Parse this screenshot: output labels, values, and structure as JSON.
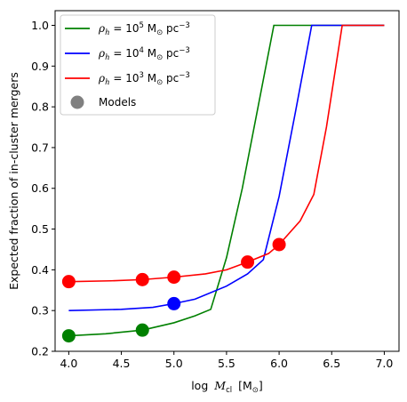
{
  "chart_data": {
    "type": "line",
    "title": "",
    "xlabel_parts": {
      "prefix": "log",
      "var": "M",
      "sub": "cl",
      "unit": "[M",
      "unit_sub": "⊙",
      "unit_end": "]"
    },
    "ylabel": "Expected fraction of in-cluster mergers",
    "xlim": [
      3.87,
      7.14
    ],
    "ylim": [
      0.2,
      1.036
    ],
    "xticks": [
      "4.0",
      "4.5",
      "5.0",
      "5.5",
      "6.0",
      "6.5",
      "7.0"
    ],
    "xtick_values": [
      4.0,
      4.5,
      5.0,
      5.5,
      6.0,
      6.5,
      7.0
    ],
    "yticks": [
      "0.2",
      "0.3",
      "0.4",
      "0.5",
      "0.6",
      "0.7",
      "0.8",
      "0.9",
      "1.0"
    ],
    "ytick_values": [
      0.2,
      0.3,
      0.4,
      0.5,
      0.6,
      0.7,
      0.8,
      0.9,
      1.0
    ],
    "grid": false,
    "legend_position": "top-left",
    "series": [
      {
        "name_parts": {
          "rho": "ρ",
          "rho_sub": "h",
          "eq": " = 10",
          "exp": "5",
          "unit": " M",
          "unit_sub": "⊙",
          "pc": " pc",
          "pc_exp": "−3"
        },
        "color": "#008000",
        "x": [
          4.0,
          4.35,
          4.7,
          5.0,
          5.2,
          5.35,
          5.5,
          5.65,
          5.8,
          5.95,
          6.0,
          7.0
        ],
        "y": [
          0.238,
          0.243,
          0.252,
          0.27,
          0.287,
          0.303,
          0.43,
          0.6,
          0.8,
          1.0,
          1.0,
          1.0
        ],
        "models_x": [
          4.0,
          4.7
        ],
        "models_y": [
          0.238,
          0.252
        ]
      },
      {
        "name_parts": {
          "rho": "ρ",
          "rho_sub": "h",
          "eq": " = 10",
          "exp": "4",
          "unit": " M",
          "unit_sub": "⊙",
          "pc": " pc",
          "pc_exp": "−3"
        },
        "color": "#0000ff",
        "x": [
          4.0,
          4.5,
          4.8,
          5.0,
          5.2,
          5.5,
          5.7,
          5.85,
          6.0,
          6.15,
          6.31,
          6.33,
          7.0
        ],
        "y": [
          0.3,
          0.303,
          0.308,
          0.317,
          0.328,
          0.36,
          0.39,
          0.425,
          0.58,
          0.78,
          1.0,
          1.0,
          1.0
        ],
        "models_x": [
          5.0
        ],
        "models_y": [
          0.317
        ]
      },
      {
        "name_parts": {
          "rho": "ρ",
          "rho_sub": "h",
          "eq": " = 10",
          "exp": "3",
          "unit": " M",
          "unit_sub": "⊙",
          "pc": " pc",
          "pc_exp": "−3"
        },
        "color": "#ff0000",
        "x": [
          4.0,
          4.4,
          4.7,
          5.0,
          5.3,
          5.5,
          5.7,
          5.9,
          6.0,
          6.2,
          6.33,
          6.45,
          6.6,
          6.63,
          7.0
        ],
        "y": [
          0.371,
          0.373,
          0.376,
          0.382,
          0.39,
          0.4,
          0.419,
          0.44,
          0.462,
          0.52,
          0.585,
          0.75,
          1.0,
          1.0,
          1.0
        ],
        "models_x": [
          4.0,
          4.7,
          5.0,
          5.7,
          6.0
        ],
        "models_y": [
          0.371,
          0.376,
          0.382,
          0.419,
          0.462
        ]
      }
    ],
    "models_legend": "Models",
    "models_legend_color": "#808080"
  }
}
